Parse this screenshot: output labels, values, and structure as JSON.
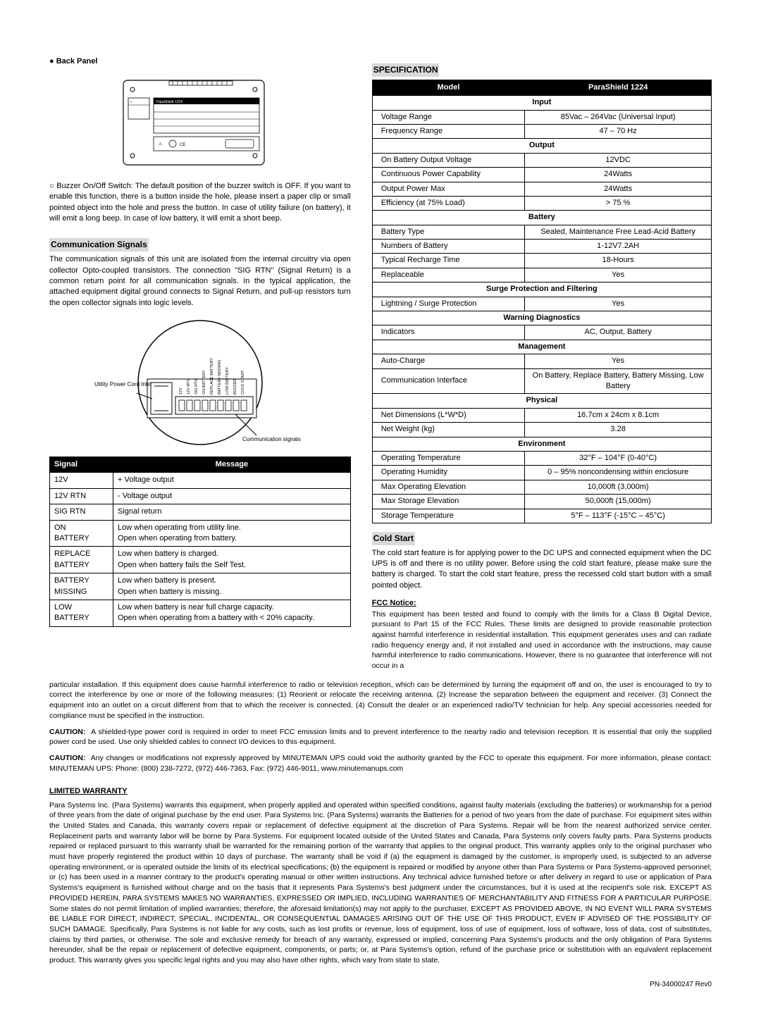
{
  "left": {
    "back_panel_title": "● Back Panel",
    "buzzer_text": "○ Buzzer On/Off Switch: The default position of the buzzer switch is OFF. If you want to enable this function, there is a button inside the hole, please insert a paper clip or small pointed object into the hole and press the button. In case of utility failure (on battery), it will emit a long beep. In case of low battery, it will emit a short beep.",
    "comm_title": "Communication Signals",
    "comm_text": "The communication signals of this unit are isolated from the internal circuitry via open collector Opto-coupled transistors. The connection \"SIG RTN\" (Signal Return) is a common return point for all communication signals. In the typical application, the attached equipment digital ground connects to Signal Return, and pull-up resistors turn the open collector signals into logic levels.",
    "diagram_left_label": "Utility Power Cord Inlet",
    "diagram_right_label": "Communication signals",
    "signal_table": {
      "headers": [
        "Signal",
        "Message"
      ],
      "rows": [
        [
          "12V",
          "+ Voltage output"
        ],
        [
          "12V RTN",
          "- Voltage output"
        ],
        [
          "SIG RTN",
          "Signal return"
        ],
        [
          "ON BATTERY",
          "Low when operating from utility line.\nOpen when operating from battery."
        ],
        [
          "REPLACE BATTERY",
          "Low when battery is charged.\nOpen when battery fails the Self Test."
        ],
        [
          "BATTERY MISSING",
          "Low when battery is present.\nOpen when battery is missing."
        ],
        [
          "LOW BATTERY",
          "Low when battery is near full charge capacity.\nOpen when operating from a battery with < 20% capacity."
        ]
      ]
    }
  },
  "right": {
    "spec_title": "SPECIFICATION",
    "spec_table": {
      "headers": [
        "Model",
        "ParaShield 1224"
      ],
      "sections": [
        {
          "sub": "Input",
          "rows": [
            [
              "Voltage Range",
              "85Vac – 264Vac (Universal Input)"
            ],
            [
              "Frequency Range",
              "47 – 70 Hz"
            ]
          ]
        },
        {
          "sub": "Output",
          "rows": [
            [
              "On Battery Output Voltage",
              "12VDC"
            ],
            [
              "Continuous Power Capability",
              "24Watts"
            ],
            [
              "Output Power Max",
              "24Watts"
            ],
            [
              "Efficiency (at 75% Load)",
              "> 75 %"
            ]
          ]
        },
        {
          "sub": "Battery",
          "rows": [
            [
              "Battery Type",
              "Sealed, Maintenance Free Lead-Acid Battery"
            ],
            [
              "Numbers of Battery",
              "1-12V7.2AH"
            ],
            [
              "Typical Recharge Time",
              "18-Hours"
            ],
            [
              "Replaceable",
              "Yes"
            ]
          ]
        },
        {
          "sub": "Surge Protection and Filtering",
          "rows": [
            [
              "Lightning / Surge Protection",
              "Yes"
            ]
          ]
        },
        {
          "sub": "Warning Diagnostics",
          "rows": [
            [
              "Indicators",
              "AC, Output, Battery"
            ]
          ]
        },
        {
          "sub": "Management",
          "rows": [
            [
              "Auto-Charge",
              "Yes"
            ],
            [
              "Communication Interface",
              "On Battery, Replace Battery, Battery Missing, Low Battery"
            ]
          ]
        },
        {
          "sub": "Physical",
          "rows": [
            [
              "Net Dimensions (L*W*D)",
              "16.7cm x 24cm x 8.1cm"
            ],
            [
              "Net Weight (kg)",
              "3.28"
            ]
          ]
        },
        {
          "sub": "Environment",
          "rows": [
            [
              "Operating Temperature",
              "32°F – 104°F (0-40°C)"
            ],
            [
              "Operating Humidity",
              "0 – 95% noncondensing within enclosure"
            ],
            [
              "Max Operating Elevation",
              "10,000ft (3,000m)"
            ],
            [
              "Max Storage Elevation",
              "50,000ft (15,000m)"
            ],
            [
              "Storage Temperature",
              "5°F – 113°F (-15°C – 45°C)"
            ]
          ]
        }
      ]
    },
    "cold_title": "Cold Start",
    "cold_text": "The cold start feature is for applying power to the DC UPS and connected equipment when the DC UPS is off and there is no utility power. Before using the cold start feature, please make sure the battery is charged. To start the cold start feature, press the recessed cold start button with a small pointed object.",
    "fcc_title": "FCC Notice:",
    "fcc_text": "This equipment has been tested and found to comply with the limits for a Class B Digital Device, pursuant to Part 15 of the FCC Rules. These limits are designed to provide reasonable protection against harmful interference in residential installation. This equipment generates uses and can radiate radio frequency energy and, if not installed and used in accordance with the instructions, may cause harmful interference to radio communications. However, there is no guarantee that interference will not occur in a"
  },
  "full": {
    "fcc_cont": "particular installation. If this equipment does cause harmful interference to radio or television reception, which can be determined by turning the equipment off and on, the user is encouraged to try to correct the interference by one or more of the following measures: (1) Reorient or relocate the receiving antenna. (2) Increase the separation between the equipment and receiver. (3) Connect the equipment into an outlet on a circuit different from that to which the receiver is connected. (4) Consult the dealer or an experienced radio/TV technician for help. Any special accessories needed for compliance must be specified in the instruction.",
    "caution1": "CAUTION:   A shielded-type power cord is required in order to meet FCC emission limits and to prevent interference to the nearby radio and television reception.   It is essential that only the supplied power cord be used. Use only shielded cables to connect I/O devices to this equipment.",
    "caution2": "CAUTION:   Any changes or modifications not expressly approved by MINUTEMAN UPS could void the authority granted by the FCC to operate this equipment. For more information, please contact:   MINUTEMAN UPS:   Phone: (800) 238-7272, (972) 446-7363, Fax: (972) 446-9011, www.minutemanups.com",
    "warranty_title": "LIMITED WARRANTY",
    "warranty_text": "Para Systems Inc. (Para Systems) warrants this equipment, when properly applied and operated within specified conditions, against faulty materials (excluding the batteries) or workmanship for a period of three years from the date of original purchase by the end user. Para Systems Inc. (Para Systems) warrants the Batteries for a period of two years from the date of purchase. For equipment sites within the United States and Canada, this warranty covers repair or replacement of defective equipment at the discretion of Para Systems. Repair will be from the nearest authorized service center. Replacement parts and warranty labor will be borne by Para Systems. For equipment located outside of the United States and Canada, Para Systems only covers faulty parts. Para Systems products repaired or replaced pursuant to this warranty shall be warranted for the remaining portion of the warranty that applies to the original product.  This warranty applies only to the original purchaser who must have properly registered the product within 10 days of purchase. The warranty shall be void if (a) the equipment is damaged by the customer, is improperly used, is subjected to an adverse operating environment, or is operated outside the limits of its electrical specifications; (b) the equipment is repaired or modified by anyone other than Para Systems or Para Systems-approved personnel; or (c) has been used in a manner contrary to the product's operating manual or other written instructions. Any technical advice furnished before or after delivery in regard to use or application of Para Systems's equipment is furnished without charge and on the basis that it represents Para Systems's best judgment under the circumstances, but it is used at the recipient's sole risk. EXCEPT AS PROVIDED HEREIN, PARA SYSTEMS MAKES NO WARRANTIES, EXPRESSED OR IMPLIED, INCLUDING WARRANTIES OF MERCHANTABILITY AND FITNESS FOR A PARTICULAR PURPOSE. Some states do not permit limitation of implied warranties; therefore, the aforesaid limitation(s) may not apply to the purchaser. EXCEPT AS PROVIDED ABOVE, IN NO EVENT WILL PARA SYSTEMS BE LIABLE FOR DIRECT, INDIRECT, SPECIAL, INCIDENTAL, OR CONSEQUENTIAL DAMAGES ARISING OUT OF THE USE OF THIS PRODUCT, EVEN IF ADVISED OF THE POSSIBILITY OF SUCH DAMAGE. Specifically, Para Systems is not liable for any costs, such as lost profits or revenue, loss of equipment, loss of use of equipment, loss of software, loss of data, cost of substitutes, claims by third parties, or otherwise. The sole and exclusive remedy for breach of any warranty, expressed or implied, concerning Para Systems's products and the only obligation of Para Systems hereunder, shall be the repair or replacement of defective equipment, components, or parts; or, at Para Systems's option, refund of the purchase price or substitution with an equivalent replacement product. This warranty gives you specific legal rights and you may also have other rights, which vary from state to state.",
    "pn": "PN-34000247 Rev0"
  }
}
